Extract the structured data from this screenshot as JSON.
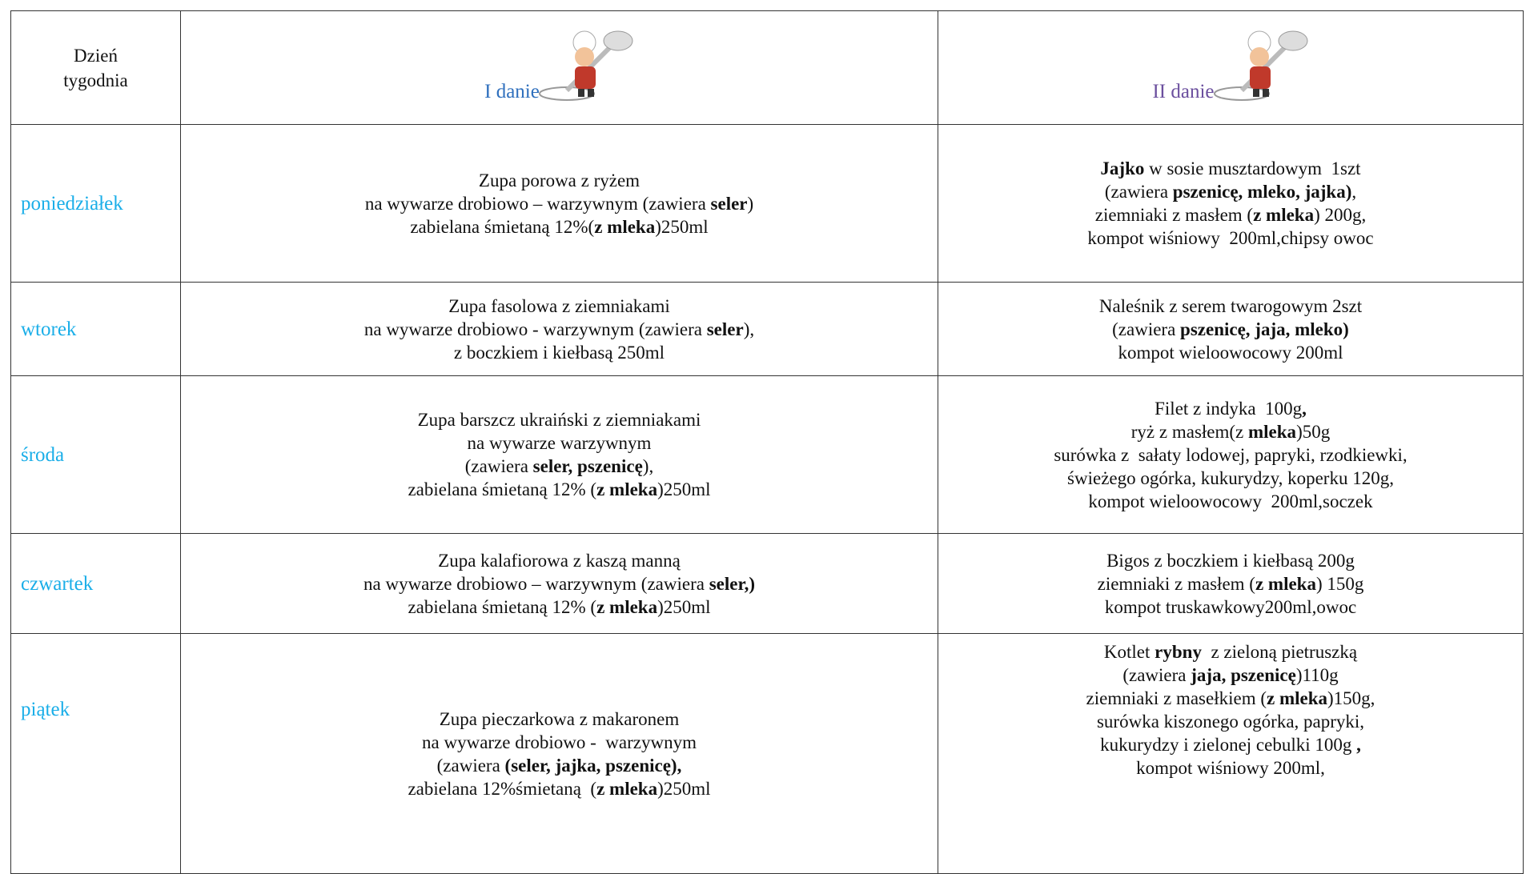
{
  "header": {
    "day": "Dzień tygodnia",
    "first": "I danie",
    "second": "II danie"
  },
  "rows": [
    {
      "day": "poniedziałek",
      "first": [
        [
          "Zupa porowa z ryżem"
        ],
        [
          "na wywarze drobiowo – warzywnym (zawiera ",
          {
            "bold": "seler"
          },
          ")"
        ],
        [
          "zabielana śmietaną 12%(",
          {
            "bold": "z mleka"
          },
          ")250ml"
        ]
      ],
      "second": [
        [
          {
            "bold": "Jajko"
          },
          " w sosie musztardowym  1szt"
        ],
        [
          "(zawiera ",
          {
            "bold": "pszenicę, mleko, jajka)"
          },
          ","
        ],
        [
          "ziemniaki z masłem (",
          {
            "bold": "z mleka"
          },
          ") 200g,"
        ],
        [
          "kompot wiśniowy  200ml,chipsy owoc"
        ]
      ]
    },
    {
      "day": "wtorek",
      "first": [
        [
          "Zupa fasolowa z ziemniakami"
        ],
        [
          "na wywarze drobiowo - warzywnym (zawiera ",
          {
            "bold": "seler"
          },
          "),"
        ],
        [
          "z boczkiem i kiełbasą 250ml"
        ]
      ],
      "second": [
        [
          "Naleśnik z serem twarogowym 2szt"
        ],
        [
          "(zawiera ",
          {
            "bold": "pszenicę, jaja, mleko)"
          }
        ],
        [
          "kompot wieloowocowy 200ml"
        ]
      ]
    },
    {
      "day": "środa",
      "first": [
        [
          "Zupa barszcz ukraiński z ziemniakami"
        ],
        [
          "na wywarze warzywnym"
        ],
        [
          "(zawiera ",
          {
            "bold": "seler, pszenicę"
          },
          "),"
        ],
        [
          "zabielana śmietaną 12% (",
          {
            "bold": "z mleka"
          },
          ")250ml"
        ]
      ],
      "second": [
        [
          "Filet z indyka  100g",
          {
            "bold": ","
          }
        ],
        [
          "ryż z masłem(z ",
          {
            "bold": "mleka"
          },
          ")50g"
        ],
        [
          "surówka z  sałaty lodowej, papryki, rzodkiewki,"
        ],
        [
          "świeżego ogórka, kukurydzy, koperku 120g,"
        ],
        [
          "kompot wieloowocowy  200ml,soczek"
        ]
      ]
    },
    {
      "day": "czwartek",
      "first": [
        [
          "Zupa kalafiorowa z kaszą manną"
        ],
        [
          "na wywarze drobiowo – warzywnym (zawiera ",
          {
            "bold": "seler,)"
          }
        ],
        [
          "zabielana śmietaną 12% (",
          {
            "bold": "z mleka"
          },
          ")250ml"
        ]
      ],
      "second": [
        [
          "Bigos z boczkiem i kiełbasą 200g"
        ],
        [
          "ziemniaki z masłem (",
          {
            "bold": "z mleka"
          },
          ") 150g"
        ],
        [
          "kompot truskawkowy200ml,owoc"
        ]
      ]
    },
    {
      "day": "piątek",
      "first": [
        [
          "Zupa pieczarkowa z makaronem"
        ],
        [
          "na wywarze drobiowo -  warzywnym"
        ],
        [
          "(zawiera ",
          {
            "bold": "(seler, jajka, pszenicę),"
          }
        ],
        [
          "zabielana 12%śmietaną  (",
          {
            "bold": "z mleka"
          },
          ")250ml"
        ]
      ],
      "second": [
        [
          "Kotlet ",
          {
            "bold": "rybny"
          },
          "  z zieloną pietruszką"
        ],
        [
          "(zawiera ",
          {
            "bold": "jaja, pszenicę"
          },
          ")110g"
        ],
        [
          "ziemniaki z masełkiem (",
          {
            "bold": "z mleka"
          },
          ")150g,"
        ],
        [
          "surówka kiszonego ogórka, papryki,"
        ],
        [
          "kukurydzy i zielonej cebulki 100g ",
          {
            "bold": ","
          }
        ],
        [
          "kompot wiśniowy 200ml,"
        ]
      ]
    }
  ]
}
